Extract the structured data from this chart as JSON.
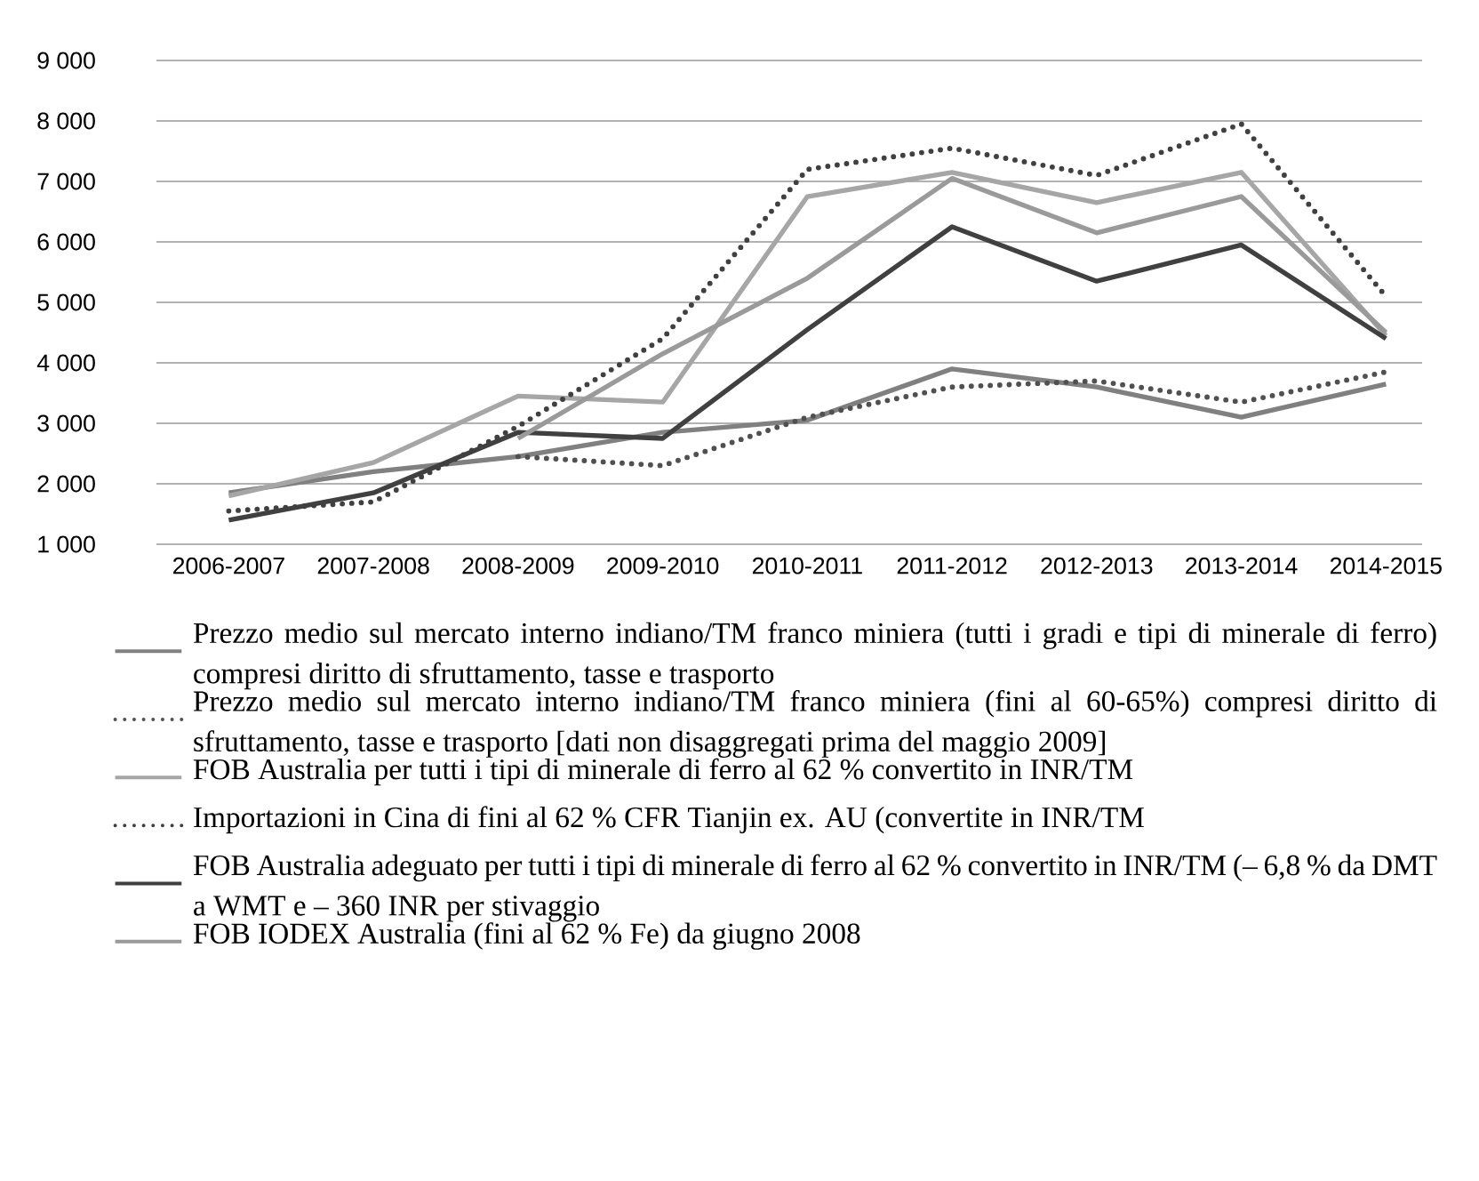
{
  "chart_data": {
    "type": "line",
    "categories": [
      "2006-2007",
      "2007-2008",
      "2008-2009",
      "2009-2010",
      "2010-2011",
      "2011-2012",
      "2012-2013",
      "2013-2014",
      "2014-2015"
    ],
    "series": [
      {
        "name": "Prezzo medio sul mercato interno indiano/TM franco miniera (tutti i gradi e tipi di minerale di ferro) compresi diritto di sfruttamento, tasse e trasporto",
        "color": "#808080",
        "line_style": "solid",
        "values": [
          1850,
          2200,
          2450,
          2850,
          3050,
          3900,
          3600,
          3100,
          3650
        ]
      },
      {
        "name": "Prezzo medio sul mercato interno indiano/TM franco miniera (fini al 60-65%) compresi diritto di sfruttamento, tasse e trasporto [dati non disaggregati prima del maggio 2009]",
        "color": "#505050",
        "line_style": "dotted",
        "values": [
          null,
          null,
          2450,
          2300,
          3100,
          3600,
          3700,
          3350,
          3850
        ]
      },
      {
        "name": "FOB Australia per tutti i tipi di minerale di ferro al 62 % convertito in INR/TM",
        "color": "#a6a6a6",
        "line_style": "solid",
        "values": [
          1800,
          2350,
          3450,
          3350,
          6750,
          7150,
          6650,
          7150,
          4450
        ]
      },
      {
        "name": "Importazioni in Cina di fini al 62 % CFR Tianjin ex. AU (convertite in INR/TM",
        "color": "#404040",
        "line_style": "dotted",
        "values": [
          1550,
          1700,
          2950,
          4400,
          7200,
          7550,
          7100,
          7950,
          5100
        ]
      },
      {
        "name": "FOB Australia adeguato per tutti i tipi di minerale di ferro al 62 % convertito in INR/TM (– 6,8 % da DMT a WMT e – 360 INR per stivaggio",
        "color": "#404040",
        "line_style": "solid",
        "values": [
          1400,
          1850,
          2850,
          2750,
          4550,
          6250,
          5350,
          5950,
          4400
        ]
      },
      {
        "name": "FOB IODEX Australia (fini al 62 % Fe) da giugno 2008",
        "color": "#9a9a9a",
        "line_style": "solid",
        "values": [
          null,
          null,
          2750,
          4150,
          5400,
          7050,
          6150,
          6750,
          4500
        ]
      }
    ],
    "ylim": [
      1000,
      9000
    ],
    "yticks": [
      {
        "value": 1000,
        "label": "1 000"
      },
      {
        "value": 2000,
        "label": "2 000"
      },
      {
        "value": 3000,
        "label": "3 000"
      },
      {
        "value": 4000,
        "label": "4 000"
      },
      {
        "value": 5000,
        "label": "5 000"
      },
      {
        "value": 6000,
        "label": "6 000"
      },
      {
        "value": 7000,
        "label": "7 000"
      },
      {
        "value": 8000,
        "label": "8 000"
      },
      {
        "value": 9000,
        "label": "9 000"
      }
    ],
    "grid": "y",
    "legend": "bottom",
    "marker": "none"
  }
}
